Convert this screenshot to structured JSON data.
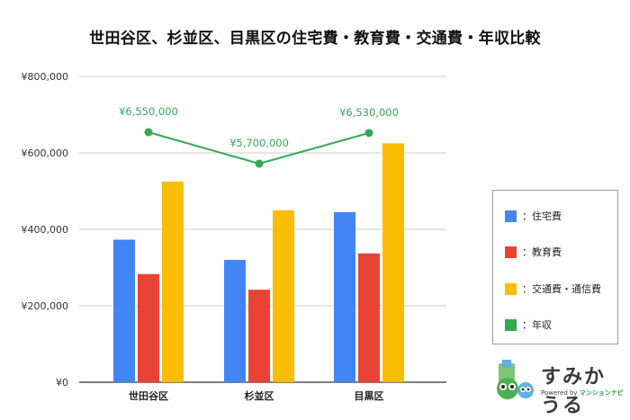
{
  "chart_data": {
    "type": "bar",
    "title": "世田谷区、杉並区、目黒区の住宅費・教育費・交通費・年収比較",
    "categories": [
      "世田谷区",
      "杉並区",
      "目黒区"
    ],
    "series": [
      {
        "name": "：住宅費",
        "kind": "bar",
        "color": "#4285f4",
        "values": [
          373000,
          320000,
          445000
        ]
      },
      {
        "name": "：教育費",
        "kind": "bar",
        "color": "#ea4335",
        "values": [
          283000,
          242000,
          337000
        ]
      },
      {
        "name": "：交通費・通信費",
        "kind": "bar",
        "color": "#fbbc04",
        "values": [
          525000,
          450000,
          625000
        ]
      },
      {
        "name": "：年収",
        "kind": "line",
        "color": "#34a853",
        "values": [
          6550000,
          5700000,
          6530000
        ],
        "data_labels": [
          "¥6,550,000",
          "¥5,700,000",
          "¥6,530,000"
        ]
      }
    ],
    "y_axis": {
      "ylim": [
        0,
        800000
      ],
      "ticks": [
        0,
        200000,
        400000,
        600000,
        800000
      ],
      "tick_labels": [
        "¥0",
        "¥200,000",
        "¥400,000",
        "¥600,000",
        "¥800,000"
      ]
    },
    "grid": true,
    "legend_position": "right"
  },
  "logo": {
    "name": "すみかうる",
    "tagline_prefix": "Powered by",
    "tagline_brand": "マンションナビ"
  }
}
